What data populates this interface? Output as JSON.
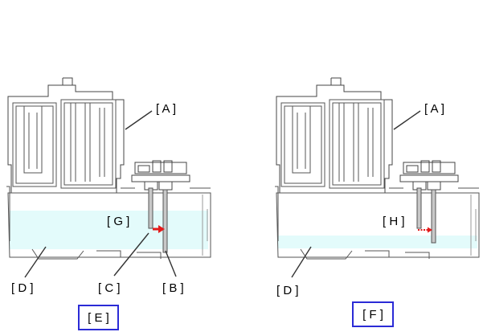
{
  "left_figure": {
    "labels": {
      "a": "[ A ]",
      "b": "[ B ]",
      "c": "[ C ]",
      "d": "[ D ]",
      "g": "[ G ]"
    },
    "caption": "[ E ]",
    "liquid_level": "high"
  },
  "right_figure": {
    "labels": {
      "a": "[ A ]",
      "d": "[ D ]",
      "h": "[ H ]"
    },
    "caption": "[ F ]",
    "liquid_level": "low"
  },
  "colors": {
    "liquid": "#e3fbfb",
    "caption_border": "#2b2bd6",
    "flow_arrow": "#e31b1b",
    "line": "#333333"
  },
  "icons": [
    "flow-arrow-icon",
    "flow-arrow-dashed-icon"
  ]
}
